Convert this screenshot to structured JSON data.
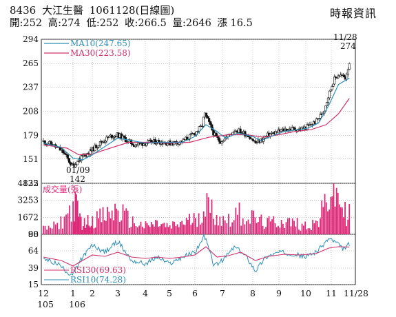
{
  "header": {
    "stock_code": "8436",
    "stock_name": "大江生醫",
    "date": "1061128",
    "chart_kind": "(日線圖)",
    "open": "開:252",
    "high": "高:274",
    "low": "低:252",
    "close": "收:266.5",
    "volume": "量:2646",
    "change": "漲 16.5",
    "source": "時報資訊"
  },
  "colors": {
    "up": "#111111",
    "down": "#111111",
    "ma10": "#2e8fb5",
    "ma30": "#d0306a",
    "volume": "#dd2a78",
    "rsi30": "#d0306a",
    "rsi10": "#2e8fb5",
    "grid": "#9a9a9a"
  },
  "chart_data": [
    {
      "type": "candlestick",
      "panel": "price",
      "yticks": [
        294,
        265,
        237,
        208,
        179,
        151,
        122
      ],
      "ylim": [
        122,
        294
      ],
      "legend": [
        {
          "name": "MA10(247.65)",
          "color": "#2e8fb5"
        },
        {
          "name": "MA30(223.58)",
          "color": "#d0306a"
        }
      ],
      "annotations": [
        {
          "date_label": "01/09",
          "value_label": "142",
          "value": 142
        },
        {
          "date_label": "11/28",
          "value_label": "274",
          "value": 274
        }
      ],
      "key_points": [
        {
          "x": 0.0,
          "y": 172
        },
        {
          "x": 0.3,
          "y": 168
        },
        {
          "x": 0.65,
          "y": 160
        },
        {
          "x": 0.95,
          "y": 144
        },
        {
          "x": 1.0,
          "y": 142
        },
        {
          "x": 1.3,
          "y": 150
        },
        {
          "x": 1.6,
          "y": 155
        },
        {
          "x": 1.9,
          "y": 160
        },
        {
          "x": 2.3,
          "y": 170
        },
        {
          "x": 2.7,
          "y": 178
        },
        {
          "x": 3.0,
          "y": 180
        },
        {
          "x": 3.3,
          "y": 174
        },
        {
          "x": 3.6,
          "y": 168
        },
        {
          "x": 4.0,
          "y": 170
        },
        {
          "x": 4.5,
          "y": 172
        },
        {
          "x": 5.0,
          "y": 170
        },
        {
          "x": 5.5,
          "y": 172
        },
        {
          "x": 5.8,
          "y": 178
        },
        {
          "x": 6.0,
          "y": 182
        },
        {
          "x": 6.25,
          "y": 190
        },
        {
          "x": 6.35,
          "y": 205
        },
        {
          "x": 6.5,
          "y": 195
        },
        {
          "x": 6.7,
          "y": 180
        },
        {
          "x": 6.9,
          "y": 172
        },
        {
          "x": 7.1,
          "y": 176
        },
        {
          "x": 7.4,
          "y": 186
        },
        {
          "x": 7.6,
          "y": 184
        },
        {
          "x": 7.9,
          "y": 178
        },
        {
          "x": 8.1,
          "y": 170
        },
        {
          "x": 8.35,
          "y": 174
        },
        {
          "x": 8.6,
          "y": 180
        },
        {
          "x": 8.9,
          "y": 183
        },
        {
          "x": 9.2,
          "y": 186
        },
        {
          "x": 9.5,
          "y": 187
        },
        {
          "x": 9.8,
          "y": 186
        },
        {
          "x": 10.1,
          "y": 190
        },
        {
          "x": 10.4,
          "y": 196
        },
        {
          "x": 10.7,
          "y": 208
        },
        {
          "x": 10.9,
          "y": 228
        },
        {
          "x": 11.1,
          "y": 245
        },
        {
          "x": 11.3,
          "y": 252
        },
        {
          "x": 11.6,
          "y": 248
        },
        {
          "x": 11.75,
          "y": 266.5
        }
      ],
      "ma_points": {
        "ma10": [
          {
            "x": 0.0,
            "y": 170
          },
          {
            "x": 0.6,
            "y": 165
          },
          {
            "x": 1.0,
            "y": 152
          },
          {
            "x": 1.5,
            "y": 150
          },
          {
            "x": 2.0,
            "y": 156
          },
          {
            "x": 2.5,
            "y": 166
          },
          {
            "x": 3.0,
            "y": 176
          },
          {
            "x": 3.5,
            "y": 173
          },
          {
            "x": 4.0,
            "y": 170
          },
          {
            "x": 4.5,
            "y": 171
          },
          {
            "x": 5.0,
            "y": 171
          },
          {
            "x": 5.5,
            "y": 171
          },
          {
            "x": 6.0,
            "y": 178
          },
          {
            "x": 6.4,
            "y": 192
          },
          {
            "x": 6.8,
            "y": 184
          },
          {
            "x": 7.1,
            "y": 176
          },
          {
            "x": 7.5,
            "y": 182
          },
          {
            "x": 8.0,
            "y": 178
          },
          {
            "x": 8.3,
            "y": 173
          },
          {
            "x": 8.7,
            "y": 178
          },
          {
            "x": 9.2,
            "y": 184
          },
          {
            "x": 9.7,
            "y": 186
          },
          {
            "x": 10.1,
            "y": 188
          },
          {
            "x": 10.5,
            "y": 194
          },
          {
            "x": 10.9,
            "y": 215
          },
          {
            "x": 11.3,
            "y": 240
          },
          {
            "x": 11.75,
            "y": 247.65
          }
        ],
        "ma30": [
          {
            "x": 0.0,
            "y": 168
          },
          {
            "x": 0.8,
            "y": 164
          },
          {
            "x": 1.3,
            "y": 156
          },
          {
            "x": 2.0,
            "y": 157
          },
          {
            "x": 2.8,
            "y": 165
          },
          {
            "x": 3.4,
            "y": 171
          },
          {
            "x": 4.2,
            "y": 171
          },
          {
            "x": 5.0,
            "y": 170
          },
          {
            "x": 5.8,
            "y": 171
          },
          {
            "x": 6.5,
            "y": 177
          },
          {
            "x": 7.2,
            "y": 180
          },
          {
            "x": 7.8,
            "y": 180
          },
          {
            "x": 8.4,
            "y": 177
          },
          {
            "x": 9.0,
            "y": 180
          },
          {
            "x": 9.6,
            "y": 184
          },
          {
            "x": 10.2,
            "y": 186
          },
          {
            "x": 10.8,
            "y": 192
          },
          {
            "x": 11.3,
            "y": 205
          },
          {
            "x": 11.75,
            "y": 223.58
          }
        ]
      }
    },
    {
      "type": "bar",
      "panel": "volume",
      "title": "成交量(張)",
      "yticks": [
        4835,
        3253,
        1672,
        90
      ],
      "ylim": [
        90,
        4835
      ],
      "key_points": [
        {
          "x": 0.0,
          "y": 700
        },
        {
          "x": 0.5,
          "y": 1100
        },
        {
          "x": 1.1,
          "y": 3500
        },
        {
          "x": 1.5,
          "y": 1200
        },
        {
          "x": 2.0,
          "y": 1800
        },
        {
          "x": 2.5,
          "y": 2100
        },
        {
          "x": 3.0,
          "y": 2800
        },
        {
          "x": 3.5,
          "y": 1500
        },
        {
          "x": 4.0,
          "y": 1000
        },
        {
          "x": 4.5,
          "y": 1300
        },
        {
          "x": 5.0,
          "y": 900
        },
        {
          "x": 5.5,
          "y": 1400
        },
        {
          "x": 6.0,
          "y": 1800
        },
        {
          "x": 6.4,
          "y": 3400
        },
        {
          "x": 6.7,
          "y": 2500
        },
        {
          "x": 7.0,
          "y": 1600
        },
        {
          "x": 7.5,
          "y": 2500
        },
        {
          "x": 8.0,
          "y": 1900
        },
        {
          "x": 8.5,
          "y": 1300
        },
        {
          "x": 9.0,
          "y": 1600
        },
        {
          "x": 9.5,
          "y": 1400
        },
        {
          "x": 10.0,
          "y": 1100
        },
        {
          "x": 10.5,
          "y": 1500
        },
        {
          "x": 10.8,
          "y": 3800
        },
        {
          "x": 11.0,
          "y": 4835
        },
        {
          "x": 11.3,
          "y": 4200
        },
        {
          "x": 11.6,
          "y": 2300
        },
        {
          "x": 11.75,
          "y": 2646
        }
      ]
    },
    {
      "type": "line",
      "panel": "rsi",
      "yticks": [
        88,
        64,
        39,
        15
      ],
      "ylim": [
        15,
        88
      ],
      "legend": [
        {
          "name": "RSI30(69.63)",
          "color": "#d0306a"
        },
        {
          "name": "RSI10(74.28)",
          "color": "#2e8fb5"
        }
      ],
      "series": [
        {
          "name": "RSI10",
          "key_points": [
            {
              "x": 0.0,
              "y": 52
            },
            {
              "x": 0.5,
              "y": 45
            },
            {
              "x": 0.9,
              "y": 30
            },
            {
              "x": 1.1,
              "y": 35
            },
            {
              "x": 1.5,
              "y": 55
            },
            {
              "x": 2.0,
              "y": 72
            },
            {
              "x": 2.5,
              "y": 62
            },
            {
              "x": 3.0,
              "y": 78
            },
            {
              "x": 3.5,
              "y": 50
            },
            {
              "x": 4.0,
              "y": 45
            },
            {
              "x": 4.5,
              "y": 55
            },
            {
              "x": 5.0,
              "y": 45
            },
            {
              "x": 5.5,
              "y": 55
            },
            {
              "x": 6.0,
              "y": 62
            },
            {
              "x": 6.35,
              "y": 86
            },
            {
              "x": 6.7,
              "y": 42
            },
            {
              "x": 7.0,
              "y": 50
            },
            {
              "x": 7.4,
              "y": 70
            },
            {
              "x": 7.8,
              "y": 55
            },
            {
              "x": 8.1,
              "y": 35
            },
            {
              "x": 8.5,
              "y": 55
            },
            {
              "x": 9.0,
              "y": 62
            },
            {
              "x": 9.5,
              "y": 60
            },
            {
              "x": 10.0,
              "y": 55
            },
            {
              "x": 10.5,
              "y": 65
            },
            {
              "x": 10.9,
              "y": 82
            },
            {
              "x": 11.2,
              "y": 76
            },
            {
              "x": 11.5,
              "y": 66
            },
            {
              "x": 11.75,
              "y": 74.28
            }
          ]
        },
        {
          "name": "RSI30",
          "key_points": [
            {
              "x": 0.0,
              "y": 55
            },
            {
              "x": 0.6,
              "y": 50
            },
            {
              "x": 1.0,
              "y": 42
            },
            {
              "x": 1.5,
              "y": 50
            },
            {
              "x": 2.0,
              "y": 58
            },
            {
              "x": 2.5,
              "y": 56
            },
            {
              "x": 3.0,
              "y": 62
            },
            {
              "x": 3.5,
              "y": 55
            },
            {
              "x": 4.0,
              "y": 53
            },
            {
              "x": 4.5,
              "y": 55
            },
            {
              "x": 5.0,
              "y": 53
            },
            {
              "x": 5.5,
              "y": 55
            },
            {
              "x": 6.0,
              "y": 58
            },
            {
              "x": 6.4,
              "y": 70
            },
            {
              "x": 6.8,
              "y": 55
            },
            {
              "x": 7.2,
              "y": 57
            },
            {
              "x": 7.6,
              "y": 62
            },
            {
              "x": 8.1,
              "y": 50
            },
            {
              "x": 8.6,
              "y": 56
            },
            {
              "x": 9.2,
              "y": 59
            },
            {
              "x": 9.8,
              "y": 58
            },
            {
              "x": 10.4,
              "y": 60
            },
            {
              "x": 10.9,
              "y": 68
            },
            {
              "x": 11.3,
              "y": 70
            },
            {
              "x": 11.75,
              "y": 69.63
            }
          ]
        }
      ]
    }
  ],
  "x_axis": {
    "months": [
      "12",
      "1",
      "2",
      "3",
      "4",
      "5",
      "6",
      "7",
      "8",
      "9",
      "10",
      "11",
      "11/28"
    ],
    "years": [
      "105",
      "106"
    ]
  }
}
